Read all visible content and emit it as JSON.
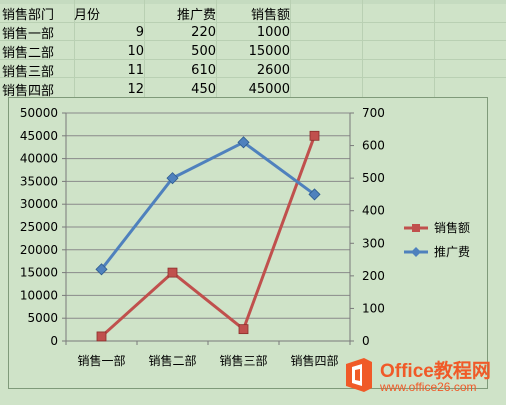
{
  "table": {
    "headers": [
      "销售部门",
      "月份",
      "推广费",
      "销售额"
    ],
    "rows": [
      [
        "销售一部",
        "9",
        "220",
        "1000"
      ],
      [
        "销售二部",
        "10",
        "500",
        "15000"
      ],
      [
        "销售三部",
        "11",
        "610",
        "2600"
      ],
      [
        "销售四部",
        "12",
        "450",
        "45000"
      ]
    ]
  },
  "chart_data": {
    "type": "line",
    "categories": [
      "销售一部",
      "销售二部",
      "销售三部",
      "销售四部"
    ],
    "series": [
      {
        "name": "销售额",
        "axis": "left",
        "values": [
          1000,
          15000,
          2600,
          45000
        ],
        "color": "#c0504d",
        "marker": "square"
      },
      {
        "name": "推广费",
        "axis": "right",
        "values": [
          220,
          500,
          610,
          450
        ],
        "color": "#4f81bd",
        "marker": "diamond"
      }
    ],
    "y_left": {
      "min": 0,
      "max": 50000,
      "step": 5000,
      "ticks": [
        "0",
        "5000",
        "10000",
        "15000",
        "20000",
        "25000",
        "30000",
        "35000",
        "40000",
        "45000",
        "50000"
      ]
    },
    "y_right": {
      "min": 0,
      "max": 700,
      "step": 100,
      "ticks": [
        "0",
        "100",
        "200",
        "300",
        "400",
        "500",
        "600",
        "700"
      ]
    },
    "grid": true,
    "legend": "right",
    "legend_items": [
      "销售额",
      "推广费"
    ]
  },
  "watermark": {
    "title": "Office教程网",
    "url": "www.office26.com"
  }
}
